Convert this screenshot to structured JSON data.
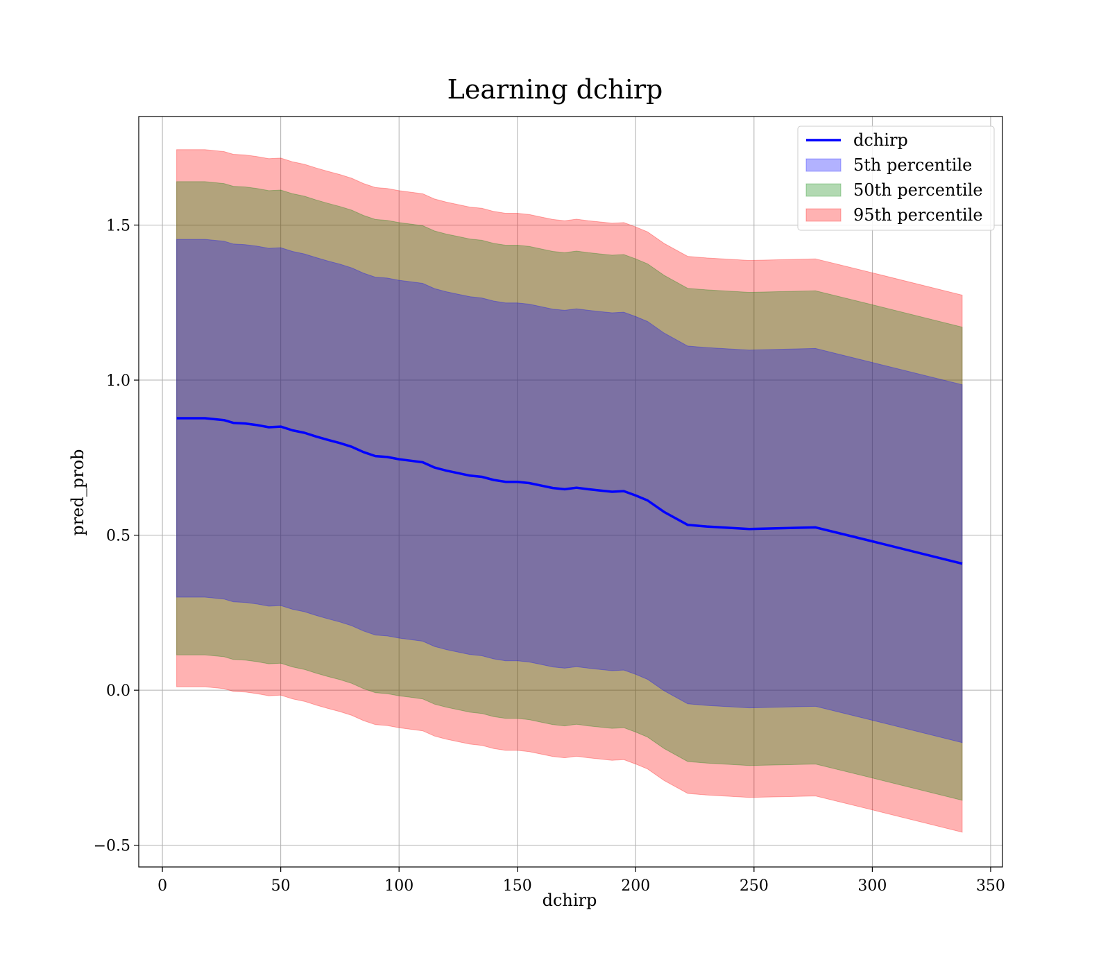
{
  "chart_data": {
    "type": "line",
    "title": "Learning dchirp",
    "xlabel": "dchirp",
    "ylabel": "pred_prob",
    "xlim": [
      -10,
      355
    ],
    "ylim": [
      -0.57,
      1.85
    ],
    "xticks": [
      0,
      50,
      100,
      150,
      200,
      250,
      300,
      350
    ],
    "xtick_labels": [
      "0",
      "50",
      "100",
      "150",
      "200",
      "250",
      "300",
      "350"
    ],
    "yticks": [
      -0.5,
      0.0,
      0.5,
      1.0,
      1.5
    ],
    "ytick_labels": [
      "−0.5",
      "0.0",
      "0.5",
      "1.0",
      "1.5"
    ],
    "grid": true,
    "legend_position": "top-right",
    "legend": [
      "dchirp",
      "5th percentile",
      "50th percentile",
      "95th percentile"
    ],
    "x": [
      6,
      18,
      26,
      30,
      35,
      40,
      45,
      50,
      55,
      60,
      65,
      70,
      75,
      80,
      85,
      90,
      95,
      100,
      105,
      110,
      115,
      120,
      125,
      130,
      135,
      140,
      145,
      150,
      155,
      160,
      165,
      170,
      175,
      180,
      185,
      190,
      195,
      200,
      205,
      212,
      222,
      230,
      248,
      276,
      300,
      338
    ],
    "series": [
      {
        "name": "dchirp",
        "color": "#0000ff",
        "y": [
          0.877,
          0.877,
          0.871,
          0.862,
          0.86,
          0.855,
          0.848,
          0.85,
          0.838,
          0.83,
          0.818,
          0.807,
          0.797,
          0.785,
          0.768,
          0.755,
          0.752,
          0.745,
          0.74,
          0.735,
          0.718,
          0.708,
          0.7,
          0.692,
          0.688,
          0.678,
          0.672,
          0.672,
          0.668,
          0.66,
          0.652,
          0.648,
          0.653,
          0.648,
          0.644,
          0.64,
          0.642,
          0.628,
          0.612,
          0.575,
          0.533,
          0.528,
          0.52,
          0.525,
          0.48,
          0.408
        ]
      },
      {
        "name": "5th percentile",
        "color": "#0000ff",
        "offset": 0.577
      },
      {
        "name": "50th percentile",
        "color": "#008000",
        "offset": 0.763
      },
      {
        "name": "95th percentile",
        "color": "#ff0000",
        "offset": 0.866
      }
    ]
  }
}
